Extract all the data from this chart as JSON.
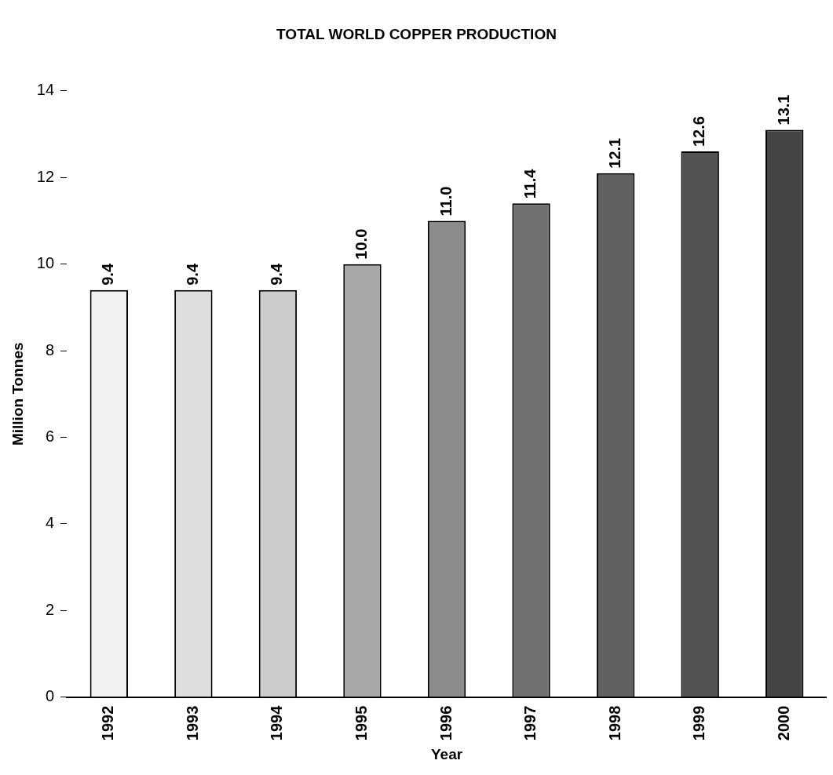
{
  "chart_data": {
    "type": "bar",
    "title": "TOTAL WORLD COPPER PRODUCTION",
    "xlabel": "Year",
    "ylabel": "Million Tonnes",
    "categories": [
      "1992",
      "1993",
      "1994",
      "1995",
      "1996",
      "1997",
      "1998",
      "1999",
      "2000"
    ],
    "values": [
      9.4,
      9.4,
      9.4,
      10.0,
      11.0,
      11.4,
      12.1,
      12.6,
      13.1
    ],
    "value_labels": [
      "9.4",
      "9.4",
      "9.4",
      "10.0",
      "11.0",
      "11.4",
      "12.1",
      "12.6",
      "13.1"
    ],
    "colors": [
      "#f2f2f2",
      "#dedede",
      "#cccccc",
      "#a8a8a8",
      "#8c8c8c",
      "#707070",
      "#606060",
      "#525252",
      "#444444"
    ],
    "ylim": [
      0,
      14
    ],
    "yticks": [
      0,
      2,
      4,
      6,
      8,
      10,
      12,
      14
    ]
  }
}
